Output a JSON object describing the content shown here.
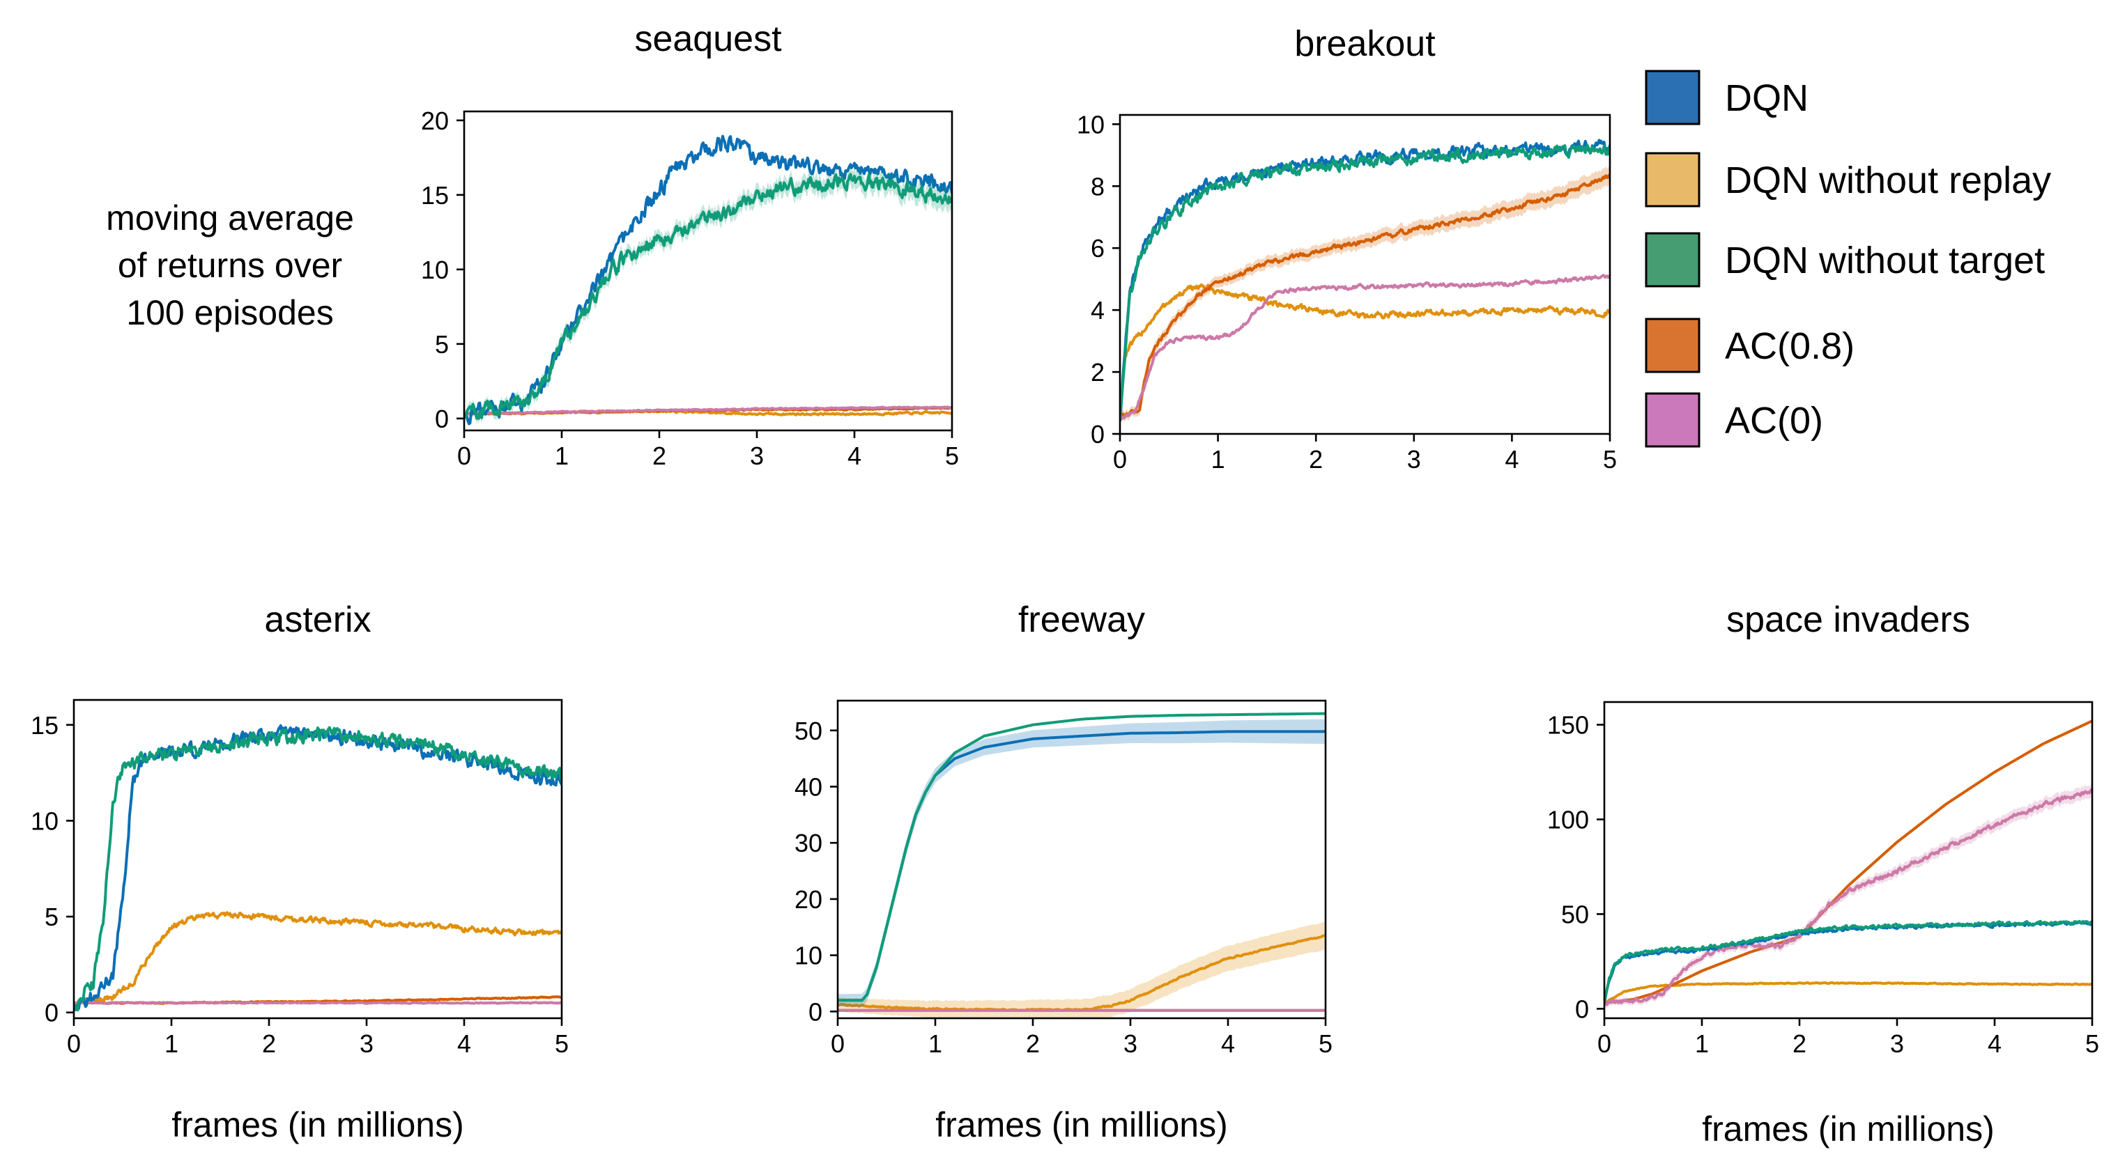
{
  "figure": {
    "ylabel_lines": [
      "moving average",
      "of returns over",
      "100 episodes"
    ],
    "xlabel": "frames (in millions)"
  },
  "legend": [
    {
      "label": "DQN",
      "color": "#2a70b2"
    },
    {
      "label": "DQN without replay",
      "color": "#e9b96a"
    },
    {
      "label": "DQN without target",
      "color": "#469d72"
    },
    {
      "label": "AC(0.8)",
      "color": "#d8742f"
    },
    {
      "label": "AC(0)",
      "color": "#cc79bb"
    }
  ],
  "series_colors": {
    "DQN": "#0b6fb5",
    "DQN without replay": "#e0900c",
    "DQN without target": "#109c78",
    "AC(0.8)": "#d55e00",
    "AC(0)": "#cc79a7"
  },
  "chart_data": [
    {
      "type": "line",
      "title": "seaquest",
      "xlabel": "",
      "ylabel": "moving average of returns over 100 episodes",
      "xlim": [
        0,
        5
      ],
      "ylim": [
        -0.8,
        20.6
      ],
      "xticks": [
        0,
        1,
        2,
        3,
        4,
        5
      ],
      "yticks": [
        0,
        5,
        10,
        15,
        20
      ],
      "series": [
        {
          "name": "DQN",
          "noise": 0.45,
          "x": [
            0,
            0.3,
            0.6,
            0.8,
            1.0,
            1.3,
            1.6,
            1.9,
            2.2,
            2.5,
            2.75,
            3.0,
            3.3,
            3.6,
            4.0,
            4.5,
            5.0
          ],
          "y": [
            0.3,
            0.8,
            1.0,
            2.3,
            5.0,
            8.5,
            11.5,
            14.5,
            17.0,
            18.0,
            18.6,
            17.5,
            17.0,
            16.8,
            16.5,
            16.2,
            15.6
          ]
        },
        {
          "name": "DQN without target",
          "noise": 0.4,
          "band": 0.7,
          "x": [
            0,
            0.3,
            0.6,
            0.8,
            1.0,
            1.3,
            1.6,
            1.9,
            2.2,
            2.5,
            2.8,
            3.0,
            3.3,
            3.6,
            4.0,
            4.5,
            5.0
          ],
          "y": [
            0.3,
            0.8,
            1.0,
            2.3,
            5.0,
            8.0,
            10.5,
            11.8,
            12.6,
            13.5,
            14.2,
            15.0,
            15.5,
            15.8,
            16.0,
            15.5,
            14.5
          ]
        },
        {
          "name": "DQN without replay",
          "noise": 0.05,
          "x": [
            0,
            1,
            2,
            3,
            4,
            5
          ],
          "y": [
            0.3,
            0.4,
            0.5,
            0.3,
            0.3,
            0.4
          ]
        },
        {
          "name": "AC(0.8)",
          "noise": 0.03,
          "x": [
            0,
            1,
            2,
            3,
            4,
            5
          ],
          "y": [
            0.3,
            0.4,
            0.5,
            0.6,
            0.6,
            0.7
          ]
        },
        {
          "name": "AC(0)",
          "noise": 0.03,
          "x": [
            0,
            1,
            2,
            3,
            4,
            5
          ],
          "y": [
            0.3,
            0.45,
            0.55,
            0.65,
            0.7,
            0.75
          ]
        }
      ]
    },
    {
      "type": "line",
      "title": "breakout",
      "xlabel": "",
      "ylabel": "",
      "xlim": [
        0,
        5
      ],
      "ylim": [
        0,
        10.3
      ],
      "xticks": [
        0,
        1,
        2,
        3,
        4,
        5
      ],
      "yticks": [
        0,
        2,
        4,
        6,
        8,
        10
      ],
      "series": [
        {
          "name": "DQN",
          "noise": 0.15,
          "x": [
            0,
            0.05,
            0.1,
            0.2,
            0.3,
            0.5,
            0.7,
            1.0,
            1.5,
            2.0,
            2.5,
            3.0,
            3.5,
            4.0,
            4.5,
            5.0
          ],
          "y": [
            0.5,
            2.5,
            4.5,
            5.8,
            6.5,
            7.2,
            7.7,
            8.2,
            8.5,
            8.8,
            8.9,
            9.0,
            9.1,
            9.2,
            9.2,
            9.3
          ]
        },
        {
          "name": "DQN without target",
          "noise": 0.15,
          "x": [
            0,
            0.05,
            0.1,
            0.2,
            0.3,
            0.5,
            0.7,
            1.0,
            1.5,
            2.0,
            2.5,
            3.0,
            3.5,
            4.0,
            4.5,
            5.0
          ],
          "y": [
            0.5,
            2.5,
            4.5,
            5.6,
            6.3,
            7.0,
            7.5,
            8.0,
            8.4,
            8.6,
            8.8,
            8.9,
            9.0,
            9.1,
            9.1,
            9.2
          ]
        },
        {
          "name": "DQN without replay",
          "noise": 0.08,
          "x": [
            0,
            0.05,
            0.1,
            0.3,
            0.5,
            0.8,
            1.0,
            1.3,
            1.6,
            2.0,
            2.5,
            3.0,
            3.5,
            4.0,
            4.5,
            5.0
          ],
          "y": [
            0.5,
            2.5,
            2.8,
            3.6,
            4.3,
            4.8,
            4.6,
            4.4,
            4.2,
            4.0,
            3.8,
            3.9,
            3.9,
            4.0,
            4.0,
            3.9
          ]
        },
        {
          "name": "AC(0.8)",
          "noise": 0.06,
          "band": 0.3,
          "x": [
            0,
            0.2,
            0.3,
            0.4,
            0.6,
            0.8,
            1.0,
            1.5,
            2.0,
            2.5,
            3.0,
            3.5,
            4.0,
            4.5,
            5.0
          ],
          "y": [
            0.5,
            0.8,
            2.5,
            3.0,
            3.8,
            4.5,
            4.9,
            5.5,
            5.9,
            6.2,
            6.6,
            6.9,
            7.3,
            7.7,
            8.3
          ]
        },
        {
          "name": "AC(0)",
          "noise": 0.05,
          "x": [
            0,
            0.15,
            0.25,
            0.35,
            0.5,
            0.7,
            1.0,
            1.2,
            1.4,
            1.6,
            2.0,
            2.5,
            3.0,
            3.5,
            4.0,
            4.5,
            5.0
          ],
          "y": [
            0.5,
            0.7,
            1.5,
            2.5,
            3.0,
            3.1,
            3.1,
            3.3,
            4.0,
            4.6,
            4.7,
            4.75,
            4.8,
            4.8,
            4.85,
            4.95,
            5.1
          ]
        }
      ]
    },
    {
      "type": "line",
      "title": "asterix",
      "xlabel": "frames (in millions)",
      "ylabel": "",
      "xlim": [
        0,
        5
      ],
      "ylim": [
        -0.3,
        16.3
      ],
      "xticks": [
        0,
        1,
        2,
        3,
        4,
        5
      ],
      "yticks": [
        0,
        5,
        10,
        15
      ],
      "series": [
        {
          "name": "DQN",
          "noise": 0.3,
          "x": [
            0,
            0.2,
            0.4,
            0.5,
            0.6,
            0.7,
            1.0,
            1.5,
            2.0,
            2.5,
            3.0,
            3.5,
            4.0,
            4.5,
            5.0
          ],
          "y": [
            0.5,
            0.8,
            2.0,
            6.0,
            12.0,
            13.0,
            13.5,
            14.0,
            14.5,
            14.6,
            14.2,
            13.8,
            13.2,
            12.6,
            12.0
          ]
        },
        {
          "name": "DQN without target",
          "noise": 0.3,
          "x": [
            0,
            0.2,
            0.3,
            0.4,
            0.5,
            0.7,
            1.0,
            1.5,
            2.0,
            2.5,
            3.0,
            3.5,
            4.0,
            4.5,
            5.0
          ],
          "y": [
            0.5,
            1.5,
            5.0,
            11.0,
            12.8,
            13.2,
            13.5,
            14.0,
            14.3,
            14.5,
            14.3,
            14.0,
            13.5,
            12.8,
            12.2
          ]
        },
        {
          "name": "DQN without replay",
          "noise": 0.12,
          "x": [
            0,
            0.4,
            0.6,
            0.8,
            1.0,
            1.3,
            1.6,
            2.0,
            2.5,
            3.0,
            3.5,
            4.0,
            4.5,
            5.0
          ],
          "y": [
            0.5,
            0.8,
            1.5,
            3.2,
            4.5,
            5.0,
            5.1,
            5.0,
            4.8,
            4.7,
            4.5,
            4.4,
            4.2,
            4.1
          ]
        },
        {
          "name": "AC(0.8)",
          "noise": 0.02,
          "x": [
            0,
            1,
            2,
            3,
            4,
            5
          ],
          "y": [
            0.5,
            0.5,
            0.55,
            0.6,
            0.7,
            0.8
          ]
        },
        {
          "name": "AC(0)",
          "noise": 0.02,
          "x": [
            0,
            1,
            2,
            3,
            4,
            5
          ],
          "y": [
            0.5,
            0.5,
            0.5,
            0.5,
            0.5,
            0.5
          ]
        }
      ]
    },
    {
      "type": "line",
      "title": "freeway",
      "xlabel": "frames (in millions)",
      "ylabel": "",
      "xlim": [
        0,
        5
      ],
      "ylim": [
        -1.2,
        55.3
      ],
      "xticks": [
        0,
        1,
        2,
        3,
        4,
        5
      ],
      "yticks": [
        0,
        10,
        20,
        30,
        40,
        50
      ],
      "series": [
        {
          "name": "DQN",
          "noise": 0,
          "band": 2.2,
          "x": [
            0,
            0.25,
            0.3,
            0.4,
            0.5,
            0.6,
            0.7,
            0.8,
            0.9,
            1.0,
            1.2,
            1.5,
            2.0,
            2.5,
            3.0,
            3.5,
            4.0,
            4.5,
            5.0
          ],
          "y": [
            2,
            2,
            3,
            8,
            15,
            22,
            29,
            35,
            39,
            42,
            45,
            47,
            48.5,
            49,
            49.5,
            49.6,
            49.8,
            49.8,
            49.8
          ]
        },
        {
          "name": "DQN without target",
          "noise": 0,
          "x": [
            0,
            0.25,
            0.3,
            0.4,
            0.5,
            0.6,
            0.7,
            0.8,
            0.9,
            1.0,
            1.2,
            1.5,
            2.0,
            2.5,
            3.0,
            3.5,
            4.0,
            4.5,
            5.0
          ],
          "y": [
            2,
            2,
            3,
            8,
            15,
            22,
            29,
            35,
            39,
            42,
            46,
            49,
            51,
            52,
            52.5,
            52.7,
            52.8,
            52.9,
            53
          ]
        },
        {
          "name": "DQN without replay",
          "noise": 0.1,
          "band": 2.5,
          "x": [
            0,
            0.5,
            1.0,
            1.5,
            2.0,
            2.5,
            2.8,
            3.0,
            3.2,
            3.5,
            4.0,
            4.5,
            5.0
          ],
          "y": [
            1.2,
            0.8,
            0.4,
            0.3,
            0.3,
            0.3,
            1.0,
            2.0,
            3.5,
            6.0,
            9.5,
            11.5,
            13.5
          ]
        },
        {
          "name": "AC(0.8)",
          "noise": 0,
          "x": [
            0,
            1,
            2,
            3,
            4,
            5
          ],
          "y": [
            0.2,
            0.2,
            0.2,
            0.2,
            0.2,
            0.2
          ]
        },
        {
          "name": "AC(0)",
          "noise": 0,
          "x": [
            0,
            1,
            2,
            3,
            4,
            5
          ],
          "y": [
            0.2,
            0.2,
            0.2,
            0.2,
            0.2,
            0.2
          ]
        }
      ]
    },
    {
      "type": "line",
      "title": "space invaders",
      "xlabel": "frames (in millions)",
      "ylabel": "",
      "xlim": [
        0,
        5
      ],
      "ylim": [
        -5,
        162
      ],
      "xticks": [
        0,
        1,
        2,
        3,
        4,
        5
      ],
      "yticks": [
        0,
        50,
        100,
        150
      ],
      "series": [
        {
          "name": "DQN",
          "noise": 0.7,
          "x": [
            0,
            0.05,
            0.1,
            0.2,
            0.4,
            0.6,
            1.0,
            1.5,
            2.0,
            2.5,
            3.0,
            3.5,
            4.0,
            4.5,
            5.0
          ],
          "y": [
            3,
            15,
            22,
            27,
            29,
            30,
            31,
            35,
            40,
            42,
            43,
            44,
            44,
            45,
            45
          ]
        },
        {
          "name": "DQN without target",
          "noise": 0.7,
          "x": [
            0,
            0.05,
            0.1,
            0.2,
            0.4,
            0.6,
            1.0,
            1.5,
            2.0,
            2.5,
            3.0,
            3.5,
            4.0,
            4.5,
            5.0
          ],
          "y": [
            3,
            16,
            23,
            28,
            30,
            31,
            32,
            36,
            41,
            43,
            44,
            44,
            45,
            45,
            46
          ]
        },
        {
          "name": "DQN without replay",
          "noise": 0.2,
          "x": [
            0,
            0.2,
            0.5,
            1.0,
            2.0,
            3.0,
            4.0,
            5.0
          ],
          "y": [
            3,
            9,
            12,
            13,
            13.5,
            13.5,
            13,
            13
          ]
        },
        {
          "name": "AC(0.8)",
          "noise": 0,
          "x": [
            0,
            0.3,
            0.5,
            0.8,
            1.0,
            1.5,
            2.0,
            2.5,
            3.0,
            3.5,
            4.0,
            4.5,
            5.0
          ],
          "y": [
            3,
            5,
            8,
            15,
            20,
            30,
            38,
            65,
            88,
            108,
            125,
            140,
            152
          ]
        },
        {
          "name": "AC(0)",
          "noise": 0.9,
          "band": 3.5,
          "x": [
            0,
            0.4,
            0.6,
            0.8,
            1.0,
            1.2,
            1.5,
            1.8,
            2.0,
            2.3,
            2.5,
            3.0,
            3.5,
            4.0,
            4.5,
            5.0
          ],
          "y": [
            3,
            5,
            8,
            20,
            28,
            32,
            34,
            33,
            38,
            55,
            62,
            73,
            85,
            97,
            108,
            115
          ]
        }
      ]
    }
  ]
}
